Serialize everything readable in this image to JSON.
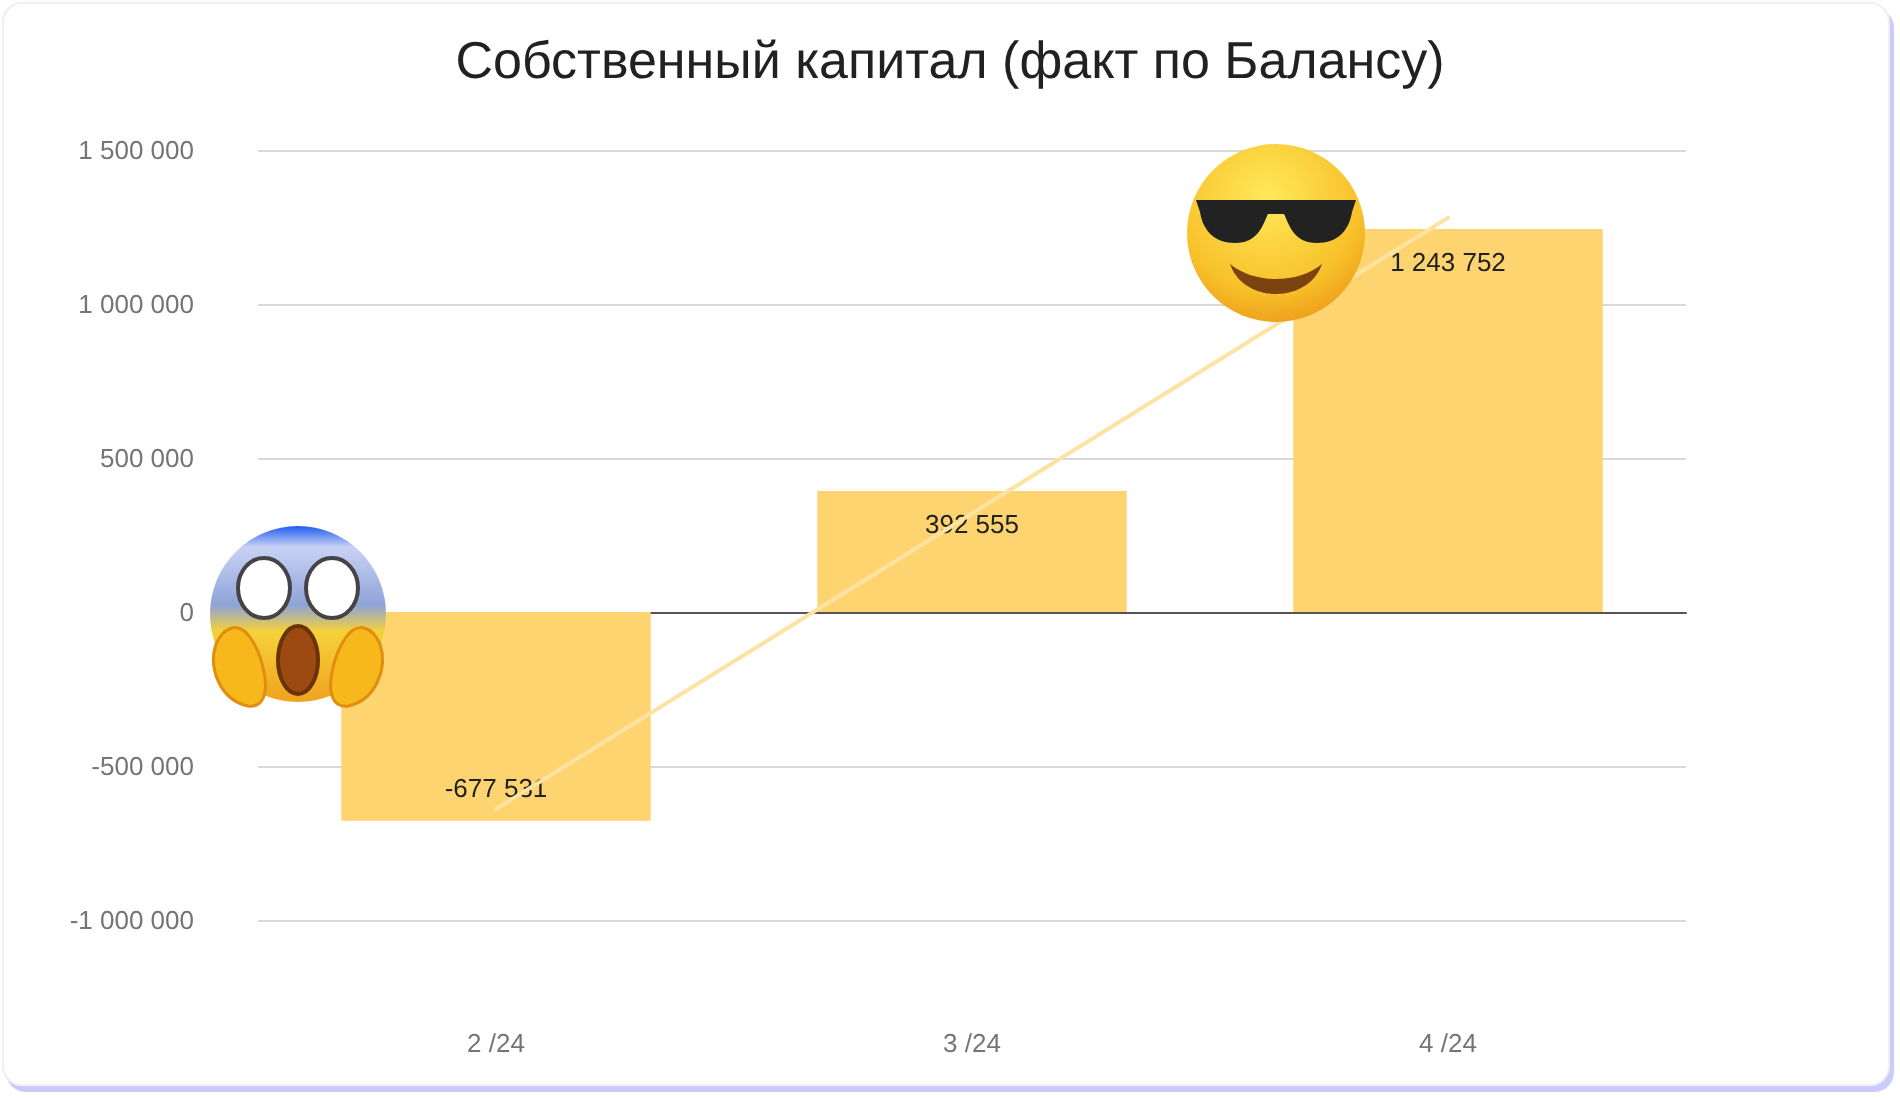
{
  "chart_data": {
    "type": "bar",
    "title": "Собственный капитал (факт по Балансу)",
    "categories": [
      "2 /24",
      "3 /24",
      "4 /24"
    ],
    "series": [
      {
        "color": "#fdd46f",
        "values": [
          -677531,
          392555,
          1243752
        ],
        "value_labels": [
          "-677 531",
          "392 555",
          "1 243 752"
        ]
      },
      {
        "type": "line",
        "color": "#fde3a3",
        "x": [
          "2 /24",
          "3 /24",
          "4 /24"
        ],
        "values": [
          -640000,
          320000,
          1280000
        ],
        "marker": "none"
      }
    ],
    "ylim": [
      -1000000,
      1500000
    ],
    "yticks": [
      {
        "value": -1000000,
        "label": "-1 000 000"
      },
      {
        "value": -500000,
        "label": "-500 000"
      },
      0,
      {
        "value": 500000,
        "label": "500 000"
      },
      {
        "value": 1000000,
        "label": "1 000 000"
      },
      {
        "value": 1500000,
        "label": "1 500 000"
      }
    ],
    "grid": "y"
  }
}
